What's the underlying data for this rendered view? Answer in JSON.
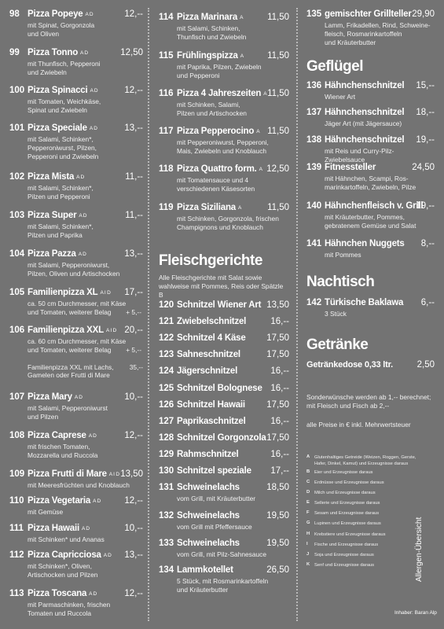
{
  "menu": {
    "col1": [
      {
        "num": "98",
        "name": "Pizza Popeye",
        "allergens": "A D",
        "price": "12,--",
        "desc": [
          "mit Spinat, Gorgonzola",
          "und Oliven"
        ]
      },
      {
        "num": "99",
        "name": "Pizza Tonno",
        "allergens": "A D",
        "price": "12,50",
        "desc": [
          "mit Thunfisch, Pepperoni",
          "und Zwiebeln"
        ]
      },
      {
        "num": "100",
        "name": "Pizza Spinacci",
        "allergens": "A D",
        "price": "12,--",
        "desc": [
          "mit Tomaten, Weichkäse,",
          "Spinat und Zwiebeln"
        ]
      },
      {
        "num": "101",
        "name": "Pizza Speciale",
        "allergens": "A D",
        "price": "13,--",
        "desc": [
          "mit Salami, Schinken*,",
          "Pepperoniwurst, Pilzen,",
          "Pepperoni und Zwiebeln"
        ]
      },
      {
        "num": "102",
        "name": "Pizza Mista",
        "allergens": "A D",
        "price": "11,--",
        "desc": [
          "mit Salami, Schinken*,",
          "Pilzen und Pepperoni"
        ]
      },
      {
        "num": "103",
        "name": "Pizza Super",
        "allergens": "A D",
        "price": "11,--",
        "desc": [
          "mit Salami, Schinken*,",
          "Pilzen und Paprika"
        ]
      },
      {
        "num": "104",
        "name": "Pizza Pazza",
        "allergens": "A D",
        "price": "13,--",
        "desc": [
          "mit Salami, Pepperoniwurst,",
          "Pilzen, Oliven und Artischocken"
        ]
      },
      {
        "num": "105",
        "name": "Familienpizza XL",
        "allergens": "A I D",
        "price": "17,--",
        "desc": [
          "ca. 50 cm Durchmesser, mit Käse",
          "und Tomaten, weiterer Belag"
        ],
        "desc_price": "+ 5,--"
      },
      {
        "num": "106",
        "name": "Familienpizza XXL",
        "allergens": "A I D",
        "price": "20,--",
        "desc": [
          "ca. 60 cm Durchmesser, mit Käse",
          "und Tomaten, weiterer Belag"
        ],
        "desc_price": "+ 5,--",
        "extra": [
          "Familienpizza XXL mit Lachs,",
          "Gamelen oder Frutti di Mare"
        ],
        "extra_price": "35,--"
      },
      {
        "num": "107",
        "name": "Pizza Mary",
        "allergens": "A D",
        "price": "10,--",
        "desc": [
          "mit Salami, Pepperoniwurst",
          "und Pilzen"
        ]
      },
      {
        "num": "108",
        "name": "Pizza Caprese",
        "allergens": "A D",
        "price": "12,--",
        "desc": [
          "mit frischen Tomaten,",
          "Mozzarella und Ruccola"
        ]
      },
      {
        "num": "109",
        "name": "Pizza Frutti di Mare",
        "allergens": "A I D",
        "price": "13,50",
        "desc": [
          "mit Meeresfrüchten und Knoblauch"
        ]
      },
      {
        "num": "110",
        "name": "Pizza Vegetaria",
        "allergens": "A D",
        "price": "12,--",
        "desc": [
          "mit Gemüse"
        ]
      },
      {
        "num": "111",
        "name": "Pizza Hawaii",
        "allergens": "A D",
        "price": "10,--",
        "desc": [
          "mit Schinken* und Ananas"
        ]
      },
      {
        "num": "112",
        "name": "Pizza Capricciosa",
        "allergens": "A D",
        "price": "13,--",
        "desc": [
          "mit Schinken*, Oliven,",
          "Artischocken und Pilzen"
        ]
      },
      {
        "num": "113",
        "name": "Pizza Toscana",
        "allergens": "A D",
        "price": "12,--",
        "desc": [
          "mit Parmaschinken, frischen",
          "Tomaten  und Ruccola"
        ]
      }
    ],
    "col2_pizza": [
      {
        "num": "114",
        "name": "Pizza Marinara",
        "allergens": "A",
        "price": "11,50",
        "desc": [
          "mit Salami, Schinken,",
          "Thunfisch und Zwiebeln"
        ]
      },
      {
        "num": "115",
        "name": "Frühlingspizza",
        "allergens": "A",
        "price": "11,50",
        "desc": [
          "mit Paprika, Pilzen, Zwiebeln",
          "und Pepperoni"
        ]
      },
      {
        "num": "116",
        "name": "Pizza 4 Jahreszeiten",
        "allergens": "A",
        "price": "11,50",
        "desc": [
          "mit Schinken, Salami,",
          "Pilzen und Artischocken"
        ]
      },
      {
        "num": "117",
        "name": "Pizza Pepperocino",
        "allergens": "A",
        "price": "11,50",
        "desc": [
          "mit Pepperoniwurst, Pepperoni,",
          "Mais, Zwiebeln und Knoblauch"
        ]
      },
      {
        "num": "118",
        "name": "Pizza Quattro form.",
        "allergens": "A",
        "price": "12,50",
        "desc": [
          "mit Tomatensauce und 4",
          "verschiedenen Käsesorten"
        ]
      },
      {
        "num": "119",
        "name": "Pizza Siziliana",
        "allergens": "A",
        "price": "11,50",
        "desc": [
          "mit Schinken, Gorgonzola, frischen",
          "Champignons und Knoblauch"
        ]
      }
    ],
    "fleisch_title": "Fleischgerichte",
    "fleisch_note": [
      "Alle Fleischgerichte mit Salat sowie",
      "wahlweise mit Pommes, Reis oder Spätzle B"
    ],
    "col2_fleisch": [
      {
        "num": "120",
        "name": "Schnitzel Wiener Art",
        "price": "13,50"
      },
      {
        "num": "121",
        "name": "Zwiebelschnitzel",
        "price": "16,--"
      },
      {
        "num": "122",
        "name": "Schnitzel 4 Käse",
        "price": "17,50"
      },
      {
        "num": "123",
        "name": "Sahneschnitzel",
        "price": "17,50"
      },
      {
        "num": "124",
        "name": "Jägerschnitzel",
        "price": "16,--"
      },
      {
        "num": "125",
        "name": "Schnitzel Bolognese",
        "price": "16,--"
      },
      {
        "num": "126",
        "name": "Schnitzel Hawaii",
        "price": "17,50"
      },
      {
        "num": "127",
        "name": "Paprikaschnitzel",
        "price": "16,--"
      },
      {
        "num": "128",
        "name": "Schnitzel Gorgonzola",
        "price": "17,50"
      },
      {
        "num": "129",
        "name": "Rahmschnitzel",
        "price": "16,--"
      },
      {
        "num": "130",
        "name": "Schnitzel speziale",
        "price": "17,--"
      },
      {
        "num": "131",
        "name": "Schweinelachs",
        "price": "18,50",
        "desc": [
          "vom Grill, mit Kräuterbutter"
        ]
      },
      {
        "num": "132",
        "name": "Schweinelachs",
        "price": "19,50",
        "desc": [
          "vom Grill mit Pfeffersauce"
        ]
      },
      {
        "num": "133",
        "name": "Schweinelachs",
        "price": "19,50",
        "desc": [
          "vom Grill, mit Pilz-Sahnesauce"
        ]
      },
      {
        "num": "134",
        "name": "Lammkotellet",
        "price": "26,50",
        "desc": [
          "5 Stück, mit Rosmarinkartoffeln",
          "und Kräuterbutter"
        ]
      }
    ],
    "col3_top": {
      "num": "135",
      "name": "gemischter Grillteller",
      "price": "29,90",
      "desc": [
        "Lamm, Frikadellen, Rind, Schweine-",
        "fleisch, Rosmarinkartoffeln",
        "und Kräuterbutter"
      ]
    },
    "gefluegel_title": "Geflügel",
    "col3_gefluegel": [
      {
        "num": "136",
        "name": "Hähnchenschnitzel",
        "price": "15,--",
        "desc": [
          "Wiener Art"
        ]
      },
      {
        "num": "137",
        "name": "Hähnchenschnitzel",
        "price": "18,--",
        "desc": [
          "Jäger Art (mit Jägersauce)"
        ]
      },
      {
        "num": "138",
        "name": "Hähnchenschnitzel",
        "price": "19,--",
        "desc": [
          "mit Reis und Curry-Pilz-Zwiebelsauce"
        ]
      },
      {
        "num": "139",
        "name": "Fitnessteller",
        "price": "24,50",
        "desc": [
          "mit Hähnchen, Scampi, Ros-",
          "marinkartoffeln, Zwiebeln, Pilze"
        ]
      },
      {
        "num": "140",
        "name": "Hähnchenfleisch v. Grill",
        "price": "19,--",
        "desc": [
          "mit Kräuterbutter, Pommes,",
          "gebratenem Gemüse und Salat"
        ]
      },
      {
        "num": "141",
        "name": "Hähnchen Nuggets",
        "price": "8,--",
        "desc": [
          "mit Pommes"
        ]
      }
    ],
    "nachtisch_title": "Nachtisch",
    "col3_nachtisch": {
      "num": "142",
      "name": "Türkische Baklawa",
      "price": "6,--",
      "desc": [
        "3 Stück"
      ]
    },
    "getraenke_title": "Getränke",
    "getraenke_item": {
      "name": "Getränkedose 0,33 ltr.",
      "price": "2,50"
    },
    "wishes_note": [
      "Sonderwünsche werden ab 1,-- berechnet;",
      "mit Fleisch und Fisch ab 2,--"
    ],
    "price_note": "alle Preise in € inkl. Mehrwertsteuer",
    "allergens": [
      {
        "letter": "A",
        "text": [
          "Glutenhaltiges Getreide (Weizen, Roggen, Gerste,",
          "Hafer, Dinkel, Kamut) und Erzeugnisse daraus"
        ]
      },
      {
        "letter": "B",
        "text": [
          "Eier und Erzeugnisse daraus"
        ]
      },
      {
        "letter": "C",
        "text": [
          "Erdnüsse und Erzeugnisse daraus"
        ]
      },
      {
        "letter": "D",
        "text": [
          "Milch und Erzeugnisse daraus"
        ]
      },
      {
        "letter": "E",
        "text": [
          "Sellerie und Erzeugnisse daraus"
        ]
      },
      {
        "letter": "F",
        "text": [
          "Sesam und Erzeugnisse daraus"
        ]
      },
      {
        "letter": "G",
        "text": [
          "Lupinen und Erzeugnisse daraus"
        ]
      },
      {
        "letter": "H",
        "text": [
          "Krebstiere und Erzeugnisse daraus"
        ]
      },
      {
        "letter": "I",
        "text": [
          "Fische und Erzeugnisse daraus"
        ]
      },
      {
        "letter": "J",
        "text": [
          "Soja und Erzeugnisse daraus"
        ]
      },
      {
        "letter": "K",
        "text": [
          "Senf und Erzeugnisse daraus"
        ]
      }
    ],
    "allergen_label": "Allergen-Übersicht",
    "owner": "Inhaber: Baran Alp"
  }
}
